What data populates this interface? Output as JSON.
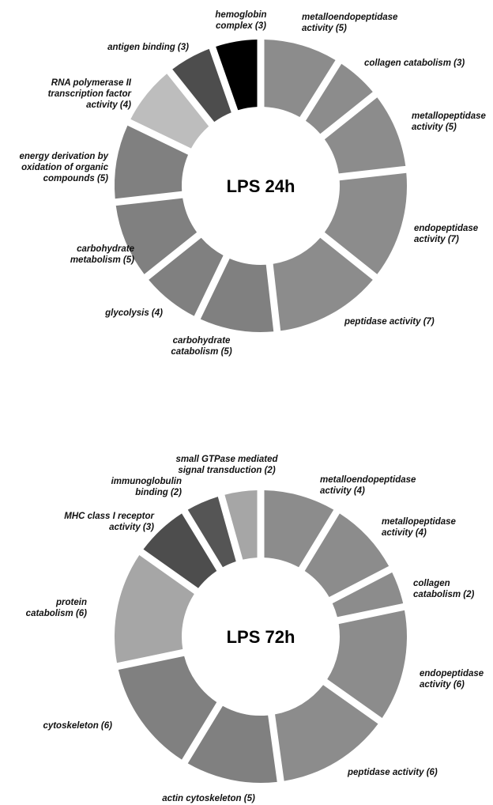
{
  "chart_data": [
    {
      "type": "pie",
      "title": "LPS 24h",
      "slices": [
        {
          "label": [
            "metalloendopeptidase",
            "activity (5)"
          ],
          "value": 5,
          "color": "#8c8c8c"
        },
        {
          "label": [
            "collagen catabolism (3)"
          ],
          "value": 3,
          "color": "#8c8c8c"
        },
        {
          "label": [
            "metallopeptidase",
            "activity (5)"
          ],
          "value": 5,
          "color": "#8c8c8c"
        },
        {
          "label": [
            "endopeptidase",
            "activity (7)"
          ],
          "value": 7,
          "color": "#8c8c8c"
        },
        {
          "label": [
            "peptidase activity (7)"
          ],
          "value": 7,
          "color": "#8c8c8c"
        },
        {
          "label": [
            "carbohydrate",
            "catabolism (5)"
          ],
          "value": 5,
          "color": "#808080"
        },
        {
          "label": [
            "glycolysis (4)"
          ],
          "value": 4,
          "color": "#808080"
        },
        {
          "label": [
            "carbohydrate",
            "metabolism (5)"
          ],
          "value": 5,
          "color": "#808080"
        },
        {
          "label": [
            "energy derivation by",
            "oxidation of organic",
            "compounds (5)"
          ],
          "value": 5,
          "color": "#808080"
        },
        {
          "label": [
            "RNA polymerase II",
            "transcription factor",
            "activity (4)"
          ],
          "value": 4,
          "color": "#bdbdbd"
        },
        {
          "label": [
            "antigen binding (3)"
          ],
          "value": 3,
          "color": "#4d4d4d"
        },
        {
          "label": [
            "hemoglobin",
            "complex (3)"
          ],
          "value": 3,
          "color": "#000000"
        }
      ]
    },
    {
      "type": "pie",
      "title": "LPS 72h",
      "slices": [
        {
          "label": [
            "metalloendopeptidase",
            "activity (4)"
          ],
          "value": 4,
          "color": "#8c8c8c"
        },
        {
          "label": [
            "metallopeptidase",
            "activity (4)"
          ],
          "value": 4,
          "color": "#8c8c8c"
        },
        {
          "label": [
            "collagen",
            "catabolism (2)"
          ],
          "value": 2,
          "color": "#8c8c8c"
        },
        {
          "label": [
            "endopeptidase",
            "activity (6)"
          ],
          "value": 6,
          "color": "#8c8c8c"
        },
        {
          "label": [
            "peptidase activity (6)"
          ],
          "value": 6,
          "color": "#8c8c8c"
        },
        {
          "label": [
            "actin cytoskeleton (5)"
          ],
          "value": 5,
          "color": "#808080"
        },
        {
          "label": [
            "cytoskeleton (6)"
          ],
          "value": 6,
          "color": "#808080"
        },
        {
          "label": [
            "protein",
            "catabolism (6)"
          ],
          "value": 6,
          "color": "#a6a6a6"
        },
        {
          "label": [
            "MHC class I receptor",
            "activity (3)"
          ],
          "value": 3,
          "color": "#4d4d4d"
        },
        {
          "label": [
            "immunoglobulin",
            "binding (2)"
          ],
          "value": 2,
          "color": "#555555"
        },
        {
          "label": [
            "small GTPase mediated",
            "signal transduction (2)"
          ],
          "value": 2,
          "color": "#a6a6a6"
        }
      ]
    }
  ]
}
